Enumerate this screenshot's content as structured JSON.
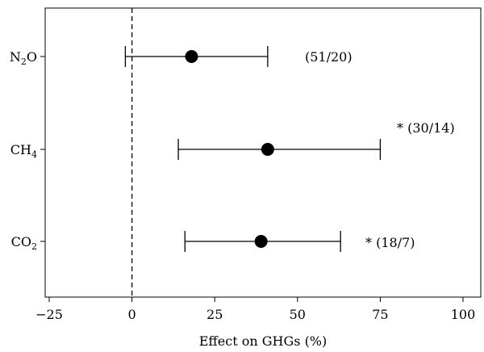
{
  "chart_data": {
    "type": "scatter",
    "title": "",
    "xlabel": "Effect on GHGs (%)",
    "ylabel": "",
    "xlim": [
      -25,
      100
    ],
    "x_ticks": [
      "−25",
      "0",
      "25",
      "50",
      "75",
      "100"
    ],
    "x_tick_values": [
      -25,
      0,
      25,
      50,
      75,
      100
    ],
    "reference_line": {
      "x": 0,
      "style": "dashed"
    },
    "grid": false,
    "points": [
      {
        "category_main": "N",
        "category_sub": "2",
        "category_tail": "O",
        "estimate": 18,
        "ci_low": -2,
        "ci_high": 41,
        "annotation": "(51/20)"
      },
      {
        "category_main": "CH",
        "category_sub": "4",
        "category_tail": "",
        "estimate": 41,
        "ci_low": 14,
        "ci_high": 75,
        "annotation": "* (30/14)"
      },
      {
        "category_main": "CO",
        "category_sub": "2",
        "category_tail": "",
        "estimate": 39,
        "ci_low": 16,
        "ci_high": 63,
        "annotation": "* (18/7)"
      }
    ]
  }
}
